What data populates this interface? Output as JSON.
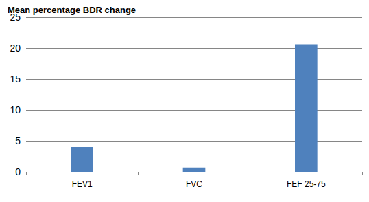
{
  "chart_data": {
    "type": "bar",
    "title": "Mean percentage BDR change",
    "categories": [
      "FEV1",
      "FVC",
      "FEF 25-75"
    ],
    "values": [
      4.0,
      0.7,
      20.6
    ],
    "color": "#4f81bd",
    "ylim": [
      0,
      25
    ],
    "yticks": [
      0,
      5,
      10,
      15,
      20,
      25
    ],
    "grid": true
  }
}
